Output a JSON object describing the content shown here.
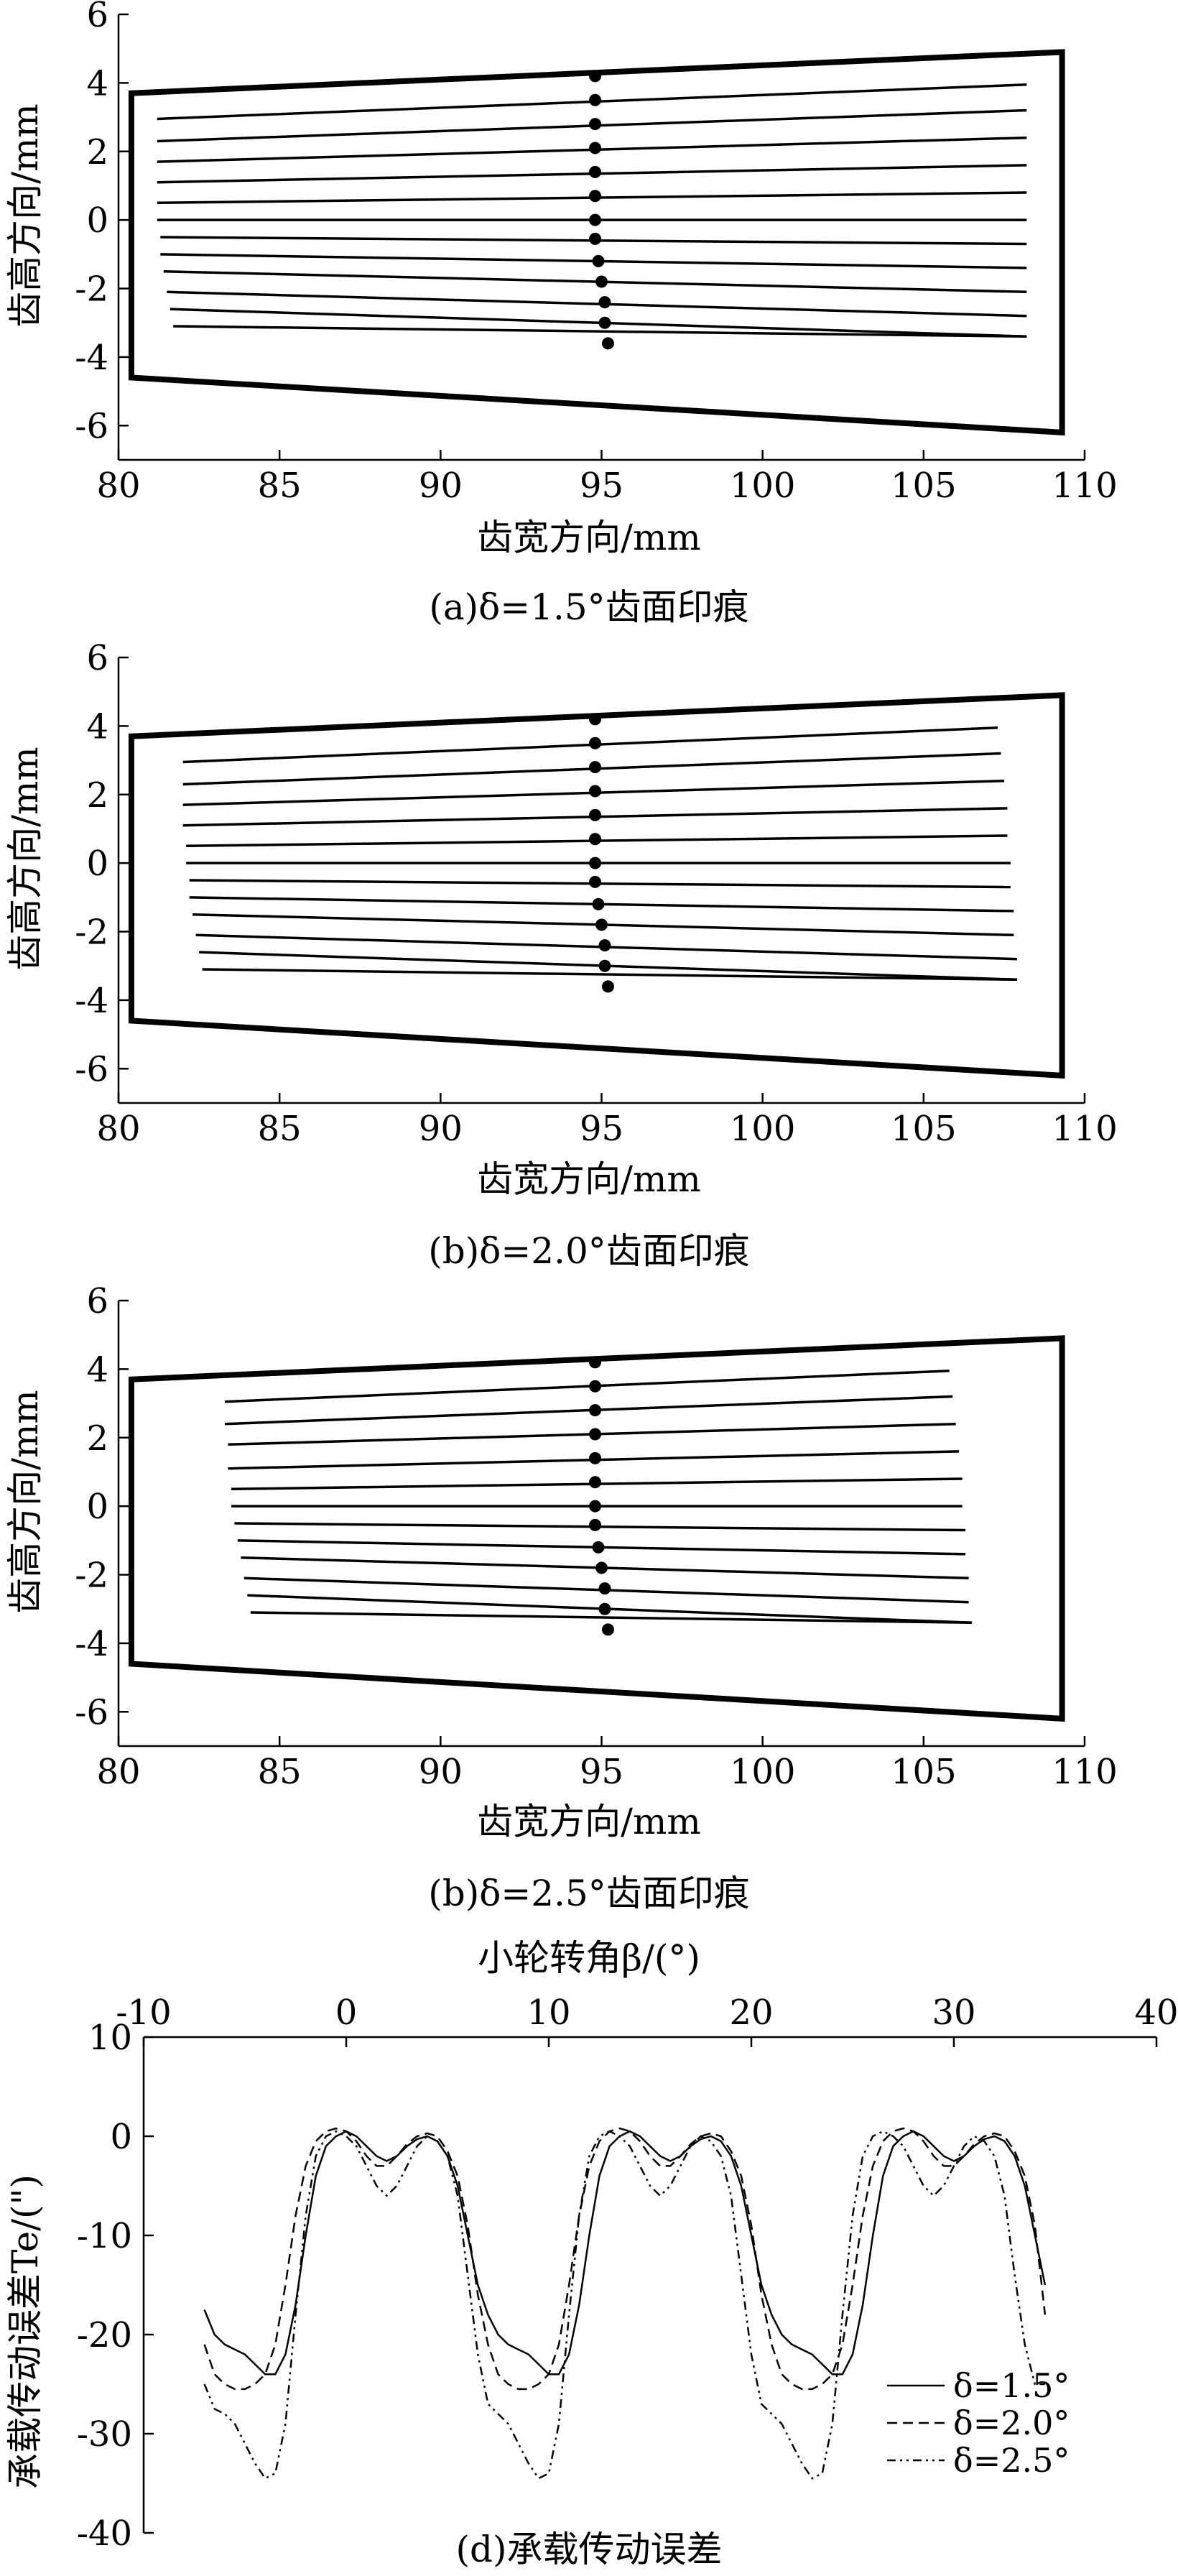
{
  "chart_data": [
    {
      "type": "line",
      "panel": "a",
      "caption": "(a)δ=1.5°齿面印痕",
      "xlabel": "齿宽方向/mm",
      "ylabel": "齿高方向/mm",
      "xlim": [
        80,
        110
      ],
      "ylim": [
        -7,
        6
      ],
      "xticks": [
        80,
        85,
        90,
        95,
        100,
        105,
        110
      ],
      "yticks": [
        -6,
        -4,
        -2,
        0,
        2,
        4,
        6
      ],
      "boundary": [
        [
          80.4,
          3.7
        ],
        [
          109.3,
          4.9
        ],
        [
          109.3,
          -6.2
        ],
        [
          80.4,
          -4.6
        ]
      ],
      "lines": [
        {
          "x0": 81.2,
          "y0": 2.95,
          "x1": 108.2,
          "y1": 3.95
        },
        {
          "x0": 81.2,
          "y0": 2.3,
          "x1": 108.2,
          "y1": 3.2
        },
        {
          "x0": 81.2,
          "y0": 1.7,
          "x1": 108.2,
          "y1": 2.4
        },
        {
          "x0": 81.2,
          "y0": 1.1,
          "x1": 108.2,
          "y1": 1.6
        },
        {
          "x0": 81.2,
          "y0": 0.5,
          "x1": 108.2,
          "y1": 0.8
        },
        {
          "x0": 81.2,
          "y0": 0.0,
          "x1": 108.2,
          "y1": 0.0
        },
        {
          "x0": 81.3,
          "y0": -0.5,
          "x1": 108.2,
          "y1": -0.7
        },
        {
          "x0": 81.3,
          "y0": -1.0,
          "x1": 108.2,
          "y1": -1.4
        },
        {
          "x0": 81.4,
          "y0": -1.5,
          "x1": 108.2,
          "y1": -2.1
        },
        {
          "x0": 81.5,
          "y0": -2.1,
          "x1": 108.2,
          "y1": -2.8
        },
        {
          "x0": 81.6,
          "y0": -2.6,
          "x1": 108.2,
          "y1": -3.4
        },
        {
          "x0": 81.7,
          "y0": -3.1,
          "x1": 108.2,
          "y1": -3.4
        }
      ],
      "points": [
        [
          94.8,
          4.2
        ],
        [
          94.8,
          3.5
        ],
        [
          94.8,
          2.8
        ],
        [
          94.8,
          2.1
        ],
        [
          94.8,
          1.4
        ],
        [
          94.8,
          0.7
        ],
        [
          94.8,
          0.0
        ],
        [
          94.8,
          -0.55
        ],
        [
          94.9,
          -1.2
        ],
        [
          95.0,
          -1.8
        ],
        [
          95.1,
          -2.4
        ],
        [
          95.1,
          -3.0
        ],
        [
          95.2,
          -3.6
        ]
      ]
    },
    {
      "type": "line",
      "panel": "b",
      "caption": "(b)δ=2.0°齿面印痕",
      "xlabel": "齿宽方向/mm",
      "ylabel": "齿高方向/mm",
      "xlim": [
        80,
        110
      ],
      "ylim": [
        -7,
        6
      ],
      "xticks": [
        80,
        85,
        90,
        95,
        100,
        105,
        110
      ],
      "yticks": [
        -6,
        -4,
        -2,
        0,
        2,
        4,
        6
      ],
      "boundary": [
        [
          80.4,
          3.7
        ],
        [
          109.3,
          4.9
        ],
        [
          109.3,
          -6.2
        ],
        [
          80.4,
          -4.6
        ]
      ],
      "lines": [
        {
          "x0": 82.0,
          "y0": 2.95,
          "x1": 107.3,
          "y1": 3.95
        },
        {
          "x0": 82.0,
          "y0": 2.3,
          "x1": 107.4,
          "y1": 3.2
        },
        {
          "x0": 82.0,
          "y0": 1.7,
          "x1": 107.5,
          "y1": 2.4
        },
        {
          "x0": 82.0,
          "y0": 1.1,
          "x1": 107.6,
          "y1": 1.6
        },
        {
          "x0": 82.1,
          "y0": 0.5,
          "x1": 107.6,
          "y1": 0.8
        },
        {
          "x0": 82.1,
          "y0": 0.0,
          "x1": 107.7,
          "y1": 0.0
        },
        {
          "x0": 82.2,
          "y0": -0.5,
          "x1": 107.7,
          "y1": -0.7
        },
        {
          "x0": 82.2,
          "y0": -1.0,
          "x1": 107.8,
          "y1": -1.4
        },
        {
          "x0": 82.3,
          "y0": -1.5,
          "x1": 107.8,
          "y1": -2.1
        },
        {
          "x0": 82.4,
          "y0": -2.1,
          "x1": 107.9,
          "y1": -2.8
        },
        {
          "x0": 82.5,
          "y0": -2.6,
          "x1": 107.9,
          "y1": -3.4
        },
        {
          "x0": 82.6,
          "y0": -3.1,
          "x1": 107.9,
          "y1": -3.4
        }
      ],
      "points": [
        [
          94.8,
          4.2
        ],
        [
          94.8,
          3.5
        ],
        [
          94.8,
          2.8
        ],
        [
          94.8,
          2.1
        ],
        [
          94.8,
          1.4
        ],
        [
          94.8,
          0.7
        ],
        [
          94.8,
          0.0
        ],
        [
          94.8,
          -0.55
        ],
        [
          94.9,
          -1.2
        ],
        [
          95.0,
          -1.8
        ],
        [
          95.1,
          -2.4
        ],
        [
          95.1,
          -3.0
        ],
        [
          95.2,
          -3.6
        ]
      ]
    },
    {
      "type": "line",
      "panel": "c",
      "caption": "(b)δ=2.5°齿面印痕",
      "xlabel": "齿宽方向/mm",
      "ylabel": "齿高方向/mm",
      "xlim": [
        80,
        110
      ],
      "ylim": [
        -7,
        6
      ],
      "xticks": [
        80,
        85,
        90,
        95,
        100,
        105,
        110
      ],
      "yticks": [
        -6,
        -4,
        -2,
        0,
        2,
        4,
        6
      ],
      "boundary": [
        [
          80.4,
          3.7
        ],
        [
          109.3,
          4.9
        ],
        [
          109.3,
          -6.2
        ],
        [
          80.4,
          -4.6
        ]
      ],
      "lines": [
        {
          "x0": 83.3,
          "y0": 3.05,
          "x1": 105.8,
          "y1": 3.95
        },
        {
          "x0": 83.3,
          "y0": 2.4,
          "x1": 105.9,
          "y1": 3.2
        },
        {
          "x0": 83.4,
          "y0": 1.8,
          "x1": 106.0,
          "y1": 2.4
        },
        {
          "x0": 83.4,
          "y0": 1.1,
          "x1": 106.1,
          "y1": 1.6
        },
        {
          "x0": 83.5,
          "y0": 0.5,
          "x1": 106.2,
          "y1": 0.8
        },
        {
          "x0": 83.5,
          "y0": 0.0,
          "x1": 106.2,
          "y1": 0.0
        },
        {
          "x0": 83.6,
          "y0": -0.5,
          "x1": 106.3,
          "y1": -0.7
        },
        {
          "x0": 83.7,
          "y0": -1.0,
          "x1": 106.3,
          "y1": -1.4
        },
        {
          "x0": 83.8,
          "y0": -1.5,
          "x1": 106.4,
          "y1": -2.1
        },
        {
          "x0": 83.9,
          "y0": -2.1,
          "x1": 106.4,
          "y1": -2.8
        },
        {
          "x0": 84.0,
          "y0": -2.6,
          "x1": 106.5,
          "y1": -3.4
        },
        {
          "x0": 84.1,
          "y0": -3.1,
          "x1": 106.5,
          "y1": -3.4
        }
      ],
      "points": [
        [
          94.8,
          4.2
        ],
        [
          94.8,
          3.5
        ],
        [
          94.8,
          2.8
        ],
        [
          94.8,
          2.1
        ],
        [
          94.8,
          1.4
        ],
        [
          94.8,
          0.7
        ],
        [
          94.8,
          0.0
        ],
        [
          94.8,
          -0.55
        ],
        [
          94.9,
          -1.2
        ],
        [
          95.0,
          -1.8
        ],
        [
          95.1,
          -2.4
        ],
        [
          95.1,
          -3.0
        ],
        [
          95.2,
          -3.6
        ]
      ]
    },
    {
      "type": "line",
      "panel": "d",
      "caption": "(d)承载传动误差",
      "xlabel": "小轮转角β/(°)",
      "ylabel": "承载传动误差Te/(\")",
      "xlim": [
        -10,
        40
      ],
      "ylim": [
        -40,
        10
      ],
      "xticks": [
        -10,
        0,
        10,
        20,
        30,
        40
      ],
      "yticks": [
        -40,
        -30,
        -20,
        -10,
        0,
        10
      ],
      "legend_position": "bottom-right",
      "series": [
        {
          "name": "δ=1.5°",
          "dash": "solid",
          "x": [
            -7.0,
            -6.5,
            -6.0,
            -5.5,
            -5.0,
            -4.5,
            -4.0,
            -3.5,
            -3.0,
            -2.5,
            -2.0,
            -1.5,
            -1.0,
            -0.5,
            0.0,
            0.5,
            1.0,
            1.5,
            2.0,
            2.5,
            3.0,
            3.5,
            4.0,
            4.5,
            5.0,
            5.5,
            6.0,
            6.5,
            7.0,
            7.5,
            8.0,
            8.5,
            9.0,
            9.5,
            10.0,
            10.5,
            11.0,
            11.5,
            12.0,
            12.5,
            13.0,
            13.5,
            14.0,
            14.5,
            15.0,
            15.5,
            16.0,
            16.5,
            17.0,
            17.5,
            18.0,
            18.5,
            19.0,
            19.5,
            20.0,
            20.5,
            21.0,
            21.5,
            22.0,
            22.5,
            23.0,
            23.5,
            24.0,
            24.5,
            25.0,
            25.5,
            26.0,
            26.5,
            27.0,
            27.5,
            28.0,
            28.5,
            29.0,
            29.5,
            30.0,
            30.5,
            31.0,
            31.5,
            32.0,
            32.5,
            33.0,
            33.5,
            34.0,
            34.5
          ],
          "y": [
            -17.5,
            -20.0,
            -21.0,
            -21.5,
            -22.0,
            -23.0,
            -24.0,
            -24.0,
            -22.0,
            -17.0,
            -10.0,
            -4.0,
            -1.0,
            0.0,
            0.5,
            0.0,
            -1.0,
            -2.0,
            -2.5,
            -2.0,
            -1.0,
            -0.3,
            0.0,
            -0.5,
            -2.0,
            -5.0,
            -10.0,
            -15.0,
            -18.0,
            -20.0,
            -21.0,
            -21.5,
            -22.0,
            -23.0,
            -24.0,
            -24.0,
            -22.0,
            -17.0,
            -10.0,
            -4.0,
            -1.0,
            0.0,
            0.5,
            0.0,
            -1.0,
            -2.0,
            -2.5,
            -2.0,
            -1.0,
            -0.3,
            0.0,
            -0.5,
            -2.0,
            -5.0,
            -10.0,
            -15.0,
            -18.0,
            -20.0,
            -21.0,
            -21.5,
            -22.0,
            -23.0,
            -24.0,
            -24.0,
            -22.0,
            -17.0,
            -10.0,
            -4.0,
            -1.0,
            0.0,
            0.5,
            0.0,
            -1.0,
            -2.0,
            -2.5,
            -2.0,
            -1.0,
            -0.3,
            0.0,
            -0.5,
            -2.0,
            -5.0,
            -10.0,
            -15.0
          ]
        },
        {
          "name": "δ=2.0°",
          "dash": "dash",
          "x": [
            -7.0,
            -6.5,
            -6.0,
            -5.5,
            -5.0,
            -4.5,
            -4.0,
            -3.5,
            -3.0,
            -2.5,
            -2.0,
            -1.5,
            -1.0,
            -0.5,
            0.0,
            0.5,
            1.0,
            1.5,
            2.0,
            2.5,
            3.0,
            3.5,
            4.0,
            4.5,
            5.0,
            5.5,
            6.0,
            6.5,
            7.0,
            7.5,
            8.0,
            8.5,
            9.0,
            9.5,
            10.0,
            10.5,
            11.0,
            11.5,
            12.0,
            12.5,
            13.0,
            13.5,
            14.0,
            14.5,
            15.0,
            15.5,
            16.0,
            16.5,
            17.0,
            17.5,
            18.0,
            18.5,
            19.0,
            19.5,
            20.0,
            20.5,
            21.0,
            21.5,
            22.0,
            22.5,
            23.0,
            23.5,
            24.0,
            24.5,
            25.0,
            25.5,
            26.0,
            26.5,
            27.0,
            27.5,
            28.0,
            28.5,
            29.0,
            29.5,
            30.0,
            30.5,
            31.0,
            31.5,
            32.0,
            32.5,
            33.0,
            33.5,
            34.0,
            34.5
          ],
          "y": [
            -21.0,
            -24.0,
            -25.0,
            -25.5,
            -25.5,
            -25.0,
            -24.0,
            -21.0,
            -15.0,
            -8.0,
            -3.0,
            -0.5,
            0.5,
            0.8,
            0.5,
            -0.5,
            -2.0,
            -3.0,
            -3.0,
            -2.0,
            -0.8,
            0.0,
            0.3,
            0.0,
            -1.5,
            -4.0,
            -9.0,
            -16.0,
            -21.0,
            -24.0,
            -25.0,
            -25.5,
            -25.5,
            -25.0,
            -24.0,
            -21.0,
            -15.0,
            -8.0,
            -3.0,
            -0.5,
            0.5,
            0.8,
            0.5,
            -0.5,
            -2.0,
            -3.0,
            -3.0,
            -2.0,
            -0.8,
            0.0,
            0.3,
            0.0,
            -1.5,
            -4.0,
            -9.0,
            -16.0,
            -21.0,
            -24.0,
            -25.0,
            -25.5,
            -25.5,
            -25.0,
            -24.0,
            -21.0,
            -15.0,
            -8.0,
            -3.0,
            -0.5,
            0.5,
            0.8,
            0.5,
            -0.5,
            -2.0,
            -3.0,
            -3.0,
            -2.0,
            -0.8,
            0.0,
            0.3,
            0.0,
            -1.5,
            -4.0,
            -9.0,
            -18.0
          ]
        },
        {
          "name": "δ=2.5°",
          "dash": "dashdotdot",
          "x": [
            -7.0,
            -6.5,
            -6.0,
            -5.5,
            -5.0,
            -4.5,
            -4.0,
            -3.5,
            -3.0,
            -2.5,
            -2.0,
            -1.5,
            -1.0,
            -0.5,
            0.0,
            0.5,
            1.0,
            1.5,
            2.0,
            2.5,
            3.0,
            3.5,
            4.0,
            4.5,
            5.0,
            5.5,
            6.0,
            6.5,
            7.0,
            7.5,
            8.0,
            8.5,
            9.0,
            9.5,
            10.0,
            10.5,
            11.0,
            11.5,
            12.0,
            12.5,
            13.0,
            13.5,
            14.0,
            14.5,
            15.0,
            15.5,
            16.0,
            16.5,
            17.0,
            17.5,
            18.0,
            18.5,
            19.0,
            19.5,
            20.0,
            20.5,
            21.0,
            21.5,
            22.0,
            22.5,
            23.0,
            23.5,
            24.0,
            24.5,
            25.0,
            25.5,
            26.0,
            26.5,
            27.0,
            27.5,
            28.0,
            28.5,
            29.0,
            29.5,
            30.0,
            30.5,
            31.0,
            31.5,
            32.0,
            32.5,
            33.0,
            33.5,
            34.0,
            34.5
          ],
          "y": [
            -25.0,
            -27.5,
            -28.0,
            -29.0,
            -31.0,
            -33.0,
            -34.5,
            -34.0,
            -29.0,
            -18.0,
            -8.0,
            -2.0,
            0.0,
            0.5,
            0.0,
            -1.0,
            -3.0,
            -5.0,
            -6.0,
            -5.0,
            -3.0,
            -1.0,
            0.0,
            -0.5,
            -2.0,
            -6.0,
            -14.0,
            -22.0,
            -27.0,
            -28.0,
            -29.0,
            -31.0,
            -33.0,
            -34.5,
            -34.0,
            -29.0,
            -18.0,
            -8.0,
            -2.0,
            0.0,
            0.5,
            0.0,
            -1.0,
            -3.0,
            -5.0,
            -6.0,
            -5.0,
            -3.0,
            -1.0,
            0.0,
            -0.5,
            -2.0,
            -6.0,
            -14.0,
            -22.0,
            -27.0,
            -28.0,
            -29.0,
            -31.0,
            -33.0,
            -34.5,
            -34.0,
            -29.0,
            -18.0,
            -8.0,
            -2.0,
            0.0,
            0.5,
            0.0,
            -1.0,
            -3.0,
            -5.0,
            -6.0,
            -5.0,
            -3.0,
            -1.0,
            0.0,
            -0.5,
            -2.0,
            -6.0,
            -14.0,
            -21.0,
            -25.0,
            -25.0
          ]
        }
      ]
    }
  ]
}
